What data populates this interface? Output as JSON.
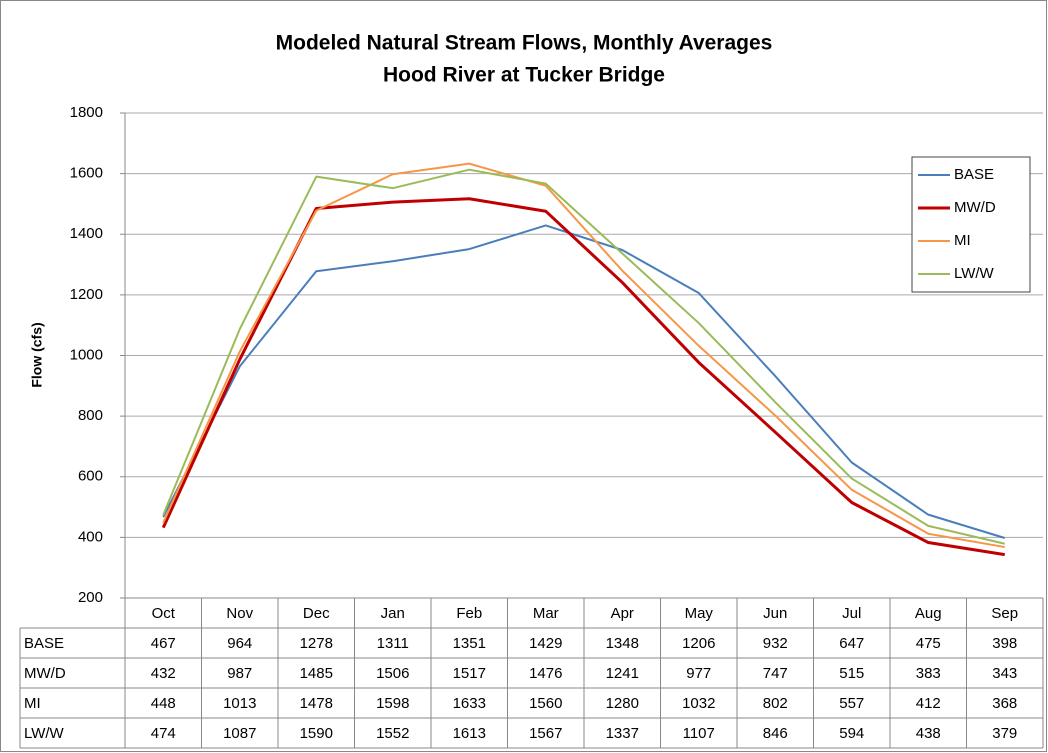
{
  "chart_data": {
    "type": "line",
    "title": "Modeled Natural Stream Flows, Monthly Averages",
    "subtitle": "Hood River at Tucker Bridge",
    "y_label": "Flow (cfs)",
    "categories": [
      "Oct",
      "Nov",
      "Dec",
      "Jan",
      "Feb",
      "Mar",
      "Apr",
      "May",
      "Jun",
      "Jul",
      "Aug",
      "Sep"
    ],
    "series": [
      {
        "name": "BASE",
        "color": "#4a7ebb",
        "values": [
          467,
          964,
          1278,
          1311,
          1351,
          1429,
          1348,
          1206,
          932,
          647,
          475,
          398
        ]
      },
      {
        "name": "MW/D",
        "color": "#c00000",
        "values": [
          432,
          987,
          1485,
          1506,
          1517,
          1476,
          1241,
          977,
          747,
          515,
          383,
          343
        ]
      },
      {
        "name": "MI",
        "color": "#f79646",
        "values": [
          448,
          1013,
          1478,
          1598,
          1633,
          1560,
          1280,
          1032,
          802,
          557,
          412,
          368
        ]
      },
      {
        "name": "LW/W",
        "color": "#9bbb59",
        "values": [
          474,
          1087,
          1590,
          1552,
          1613,
          1567,
          1337,
          1107,
          846,
          594,
          438,
          379
        ]
      }
    ],
    "ylim": [
      200,
      1800
    ],
    "yticks": [
      200,
      400,
      600,
      800,
      1000,
      1200,
      1400,
      1600,
      1800
    ],
    "grid": true,
    "legend": "right"
  }
}
